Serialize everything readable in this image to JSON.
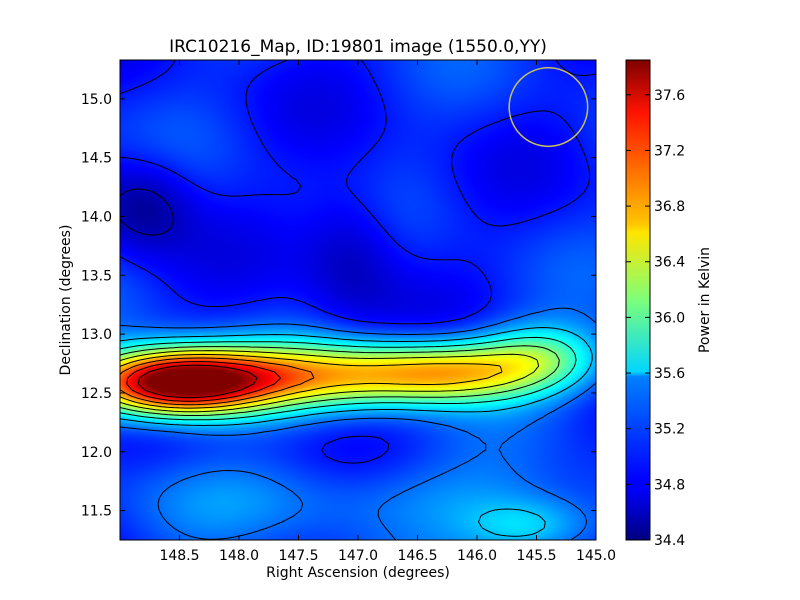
{
  "chart_data": {
    "type": "heatmap",
    "title": "IRC10216_Map, ID:19801 image (1550.0,YY)",
    "xlabel": "Right Ascension (degrees)",
    "ylabel": "Declination (degrees)",
    "colorbar_label": "Power in Kelvin",
    "colormap": "jet",
    "x_inverted": true,
    "xlim": [
      149.0,
      145.0
    ],
    "ylim": [
      11.25,
      15.33
    ],
    "x_ticks": [
      148.5,
      148.0,
      147.5,
      147.0,
      146.5,
      146.0,
      145.5,
      145.0
    ],
    "x_tick_labels": [
      "148.5",
      "148.0",
      "147.5",
      "147.0",
      "146.5",
      "146.0",
      "145.5",
      "145.0"
    ],
    "y_ticks": [
      11.5,
      12.0,
      12.5,
      13.0,
      13.5,
      14.0,
      14.5,
      15.0
    ],
    "y_tick_labels": [
      "11.5",
      "12.0",
      "12.5",
      "13.0",
      "13.5",
      "14.0",
      "14.5",
      "15.0"
    ],
    "color_range": [
      34.4,
      37.85
    ],
    "colorbar_ticks": [
      34.4,
      34.8,
      35.2,
      35.6,
      36.0,
      36.4,
      36.8,
      37.2,
      37.6
    ],
    "colorbar_tick_labels": [
      "34.4",
      "34.8",
      "35.2",
      "35.6",
      "36.0",
      "36.4",
      "36.8",
      "37.2",
      "37.6"
    ],
    "contours": true,
    "features": [
      {
        "name": "main-peak",
        "ra": 148.55,
        "dec": 12.58,
        "value": 37.85,
        "ra_width": 0.55,
        "dec_width": 0.2
      },
      {
        "name": "ridge",
        "ra": 147.3,
        "dec": 12.65,
        "value": 36.45,
        "ra_width": 0.9,
        "dec_width": 0.2
      },
      {
        "name": "ridge-east",
        "ra": 146.2,
        "dec": 12.68,
        "value": 36.1,
        "ra_width": 0.55,
        "dec_width": 0.18
      },
      {
        "name": "knot-east",
        "ra": 145.45,
        "dec": 12.82,
        "value": 35.8,
        "ra_width": 0.4,
        "dec_width": 0.2
      },
      {
        "name": "south-band",
        "ra": 146.8,
        "dec": 11.6,
        "value": 35.3,
        "ra_width": 1.4,
        "dec_width": 0.25
      },
      {
        "name": "south-east-blob",
        "ra": 145.55,
        "dec": 11.35,
        "value": 35.6,
        "ra_width": 0.4,
        "dec_width": 0.18
      },
      {
        "name": "cold-north-west",
        "ra": 148.8,
        "dec": 14.1,
        "value": 34.45,
        "ra_width": 0.3,
        "dec_width": 0.3
      },
      {
        "name": "cold-center",
        "ra": 147.05,
        "dec": 13.7,
        "value": 34.55,
        "ra_width": 0.3,
        "dec_width": 0.45
      }
    ],
    "marker_circle": {
      "ra": 145.4,
      "dec": 14.93,
      "radius_deg": 0.33,
      "color": "#c8c060"
    }
  }
}
